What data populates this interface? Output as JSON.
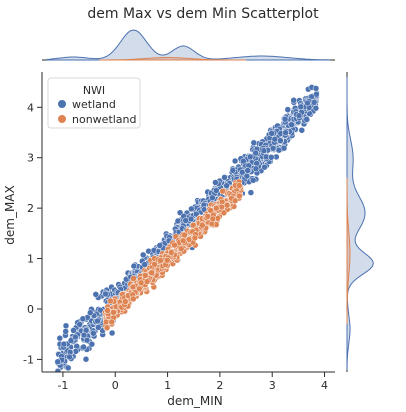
{
  "chart_data": {
    "type": "scatter",
    "title": "dem Max vs dem Min Scatterplot",
    "xlabel": "dem_MIN",
    "ylabel": "dem_MAX",
    "xlim": [
      -1.4,
      4.2
    ],
    "ylim": [
      -1.25,
      4.7
    ],
    "xticks": [
      "-1",
      "0",
      "1",
      "2",
      "3",
      "4"
    ],
    "yticks": [
      "-1",
      "0",
      "1",
      "2",
      "3",
      "4"
    ],
    "xtick_values": [
      -1,
      0,
      1,
      2,
      3,
      4
    ],
    "ytick_values": [
      -1,
      0,
      1,
      2,
      3,
      4
    ],
    "legend": {
      "title": "NWI",
      "placement": "top-left"
    },
    "marginals": "kde",
    "series": [
      {
        "name": "wetland",
        "color": "#4c72b0",
        "approx_line": {
          "slope": 1.05,
          "intercept": 0.15
        },
        "x_range": [
          -1.1,
          3.85
        ]
      },
      {
        "name": "nonwetland",
        "color": "#dd8452",
        "approx_line": {
          "slope": 1.0,
          "intercept": 0.0
        },
        "x_range": [
          -0.2,
          2.4
        ]
      }
    ]
  }
}
